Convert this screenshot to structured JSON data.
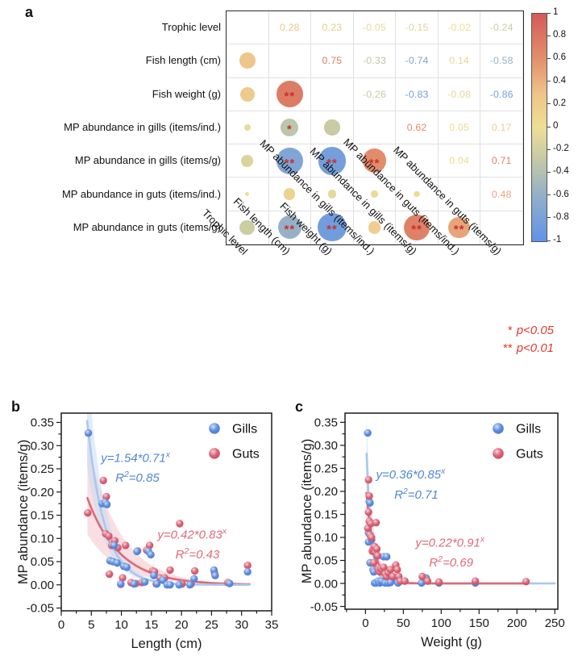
{
  "figure": {
    "panel_a_letter": "a",
    "panel_b_letter": "b",
    "panel_c_letter": "c"
  },
  "colors": {
    "blue_base": "#5a8bdf",
    "blue_hi": "#cfe0f8",
    "blue_edge": "#4d7cd0",
    "blue_line": "#a8c8ee",
    "blue_band": "#c8dcf4",
    "blue_text": "#4f86d8",
    "red_base": "#d95f72",
    "red_hi": "#f8d2da",
    "red_edge": "#c95066",
    "red_line": "#dc6a79",
    "red_band": "#f4c3cb",
    "red_text": "#e0697a",
    "star": "#c9302c",
    "note": "#e23b2e",
    "axis": "#1a1a1a"
  },
  "chart_data": [
    {
      "type": "correlation-matrix",
      "variables": [
        "Trophic level",
        "Fish length (cm)",
        "Fish weight (g)",
        "MP abundance in gills (items/ind.)",
        "MP abundance in gills (items/g)",
        "MP abundance in guts (items/ind.)",
        "MP abundance in guts (items/g)"
      ],
      "correlations": [
        {
          "row": 1,
          "col": 0,
          "r": 0.28,
          "sig": ""
        },
        {
          "row": 2,
          "col": 0,
          "r": 0.23,
          "sig": ""
        },
        {
          "row": 2,
          "col": 1,
          "r": 0.75,
          "sig": "**"
        },
        {
          "row": 3,
          "col": 0,
          "r": -0.05,
          "sig": ""
        },
        {
          "row": 3,
          "col": 1,
          "r": -0.33,
          "sig": "*"
        },
        {
          "row": 3,
          "col": 2,
          "r": -0.26,
          "sig": ""
        },
        {
          "row": 4,
          "col": 0,
          "r": -0.15,
          "sig": ""
        },
        {
          "row": 4,
          "col": 1,
          "r": -0.74,
          "sig": "**"
        },
        {
          "row": 4,
          "col": 2,
          "r": -0.83,
          "sig": "**"
        },
        {
          "row": 4,
          "col": 3,
          "r": 0.62,
          "sig": "**"
        },
        {
          "row": 5,
          "col": 0,
          "r": -0.02,
          "sig": ""
        },
        {
          "row": 5,
          "col": 1,
          "r": 0.14,
          "sig": ""
        },
        {
          "row": 5,
          "col": 2,
          "r": -0.08,
          "sig": ""
        },
        {
          "row": 5,
          "col": 3,
          "r": 0.05,
          "sig": ""
        },
        {
          "row": 5,
          "col": 4,
          "r": 0.04,
          "sig": ""
        },
        {
          "row": 6,
          "col": 0,
          "r": -0.24,
          "sig": ""
        },
        {
          "row": 6,
          "col": 1,
          "r": -0.58,
          "sig": "**"
        },
        {
          "row": 6,
          "col": 2,
          "r": -0.86,
          "sig": "**"
        },
        {
          "row": 6,
          "col": 3,
          "r": 0.17,
          "sig": ""
        },
        {
          "row": 6,
          "col": 4,
          "r": 0.71,
          "sig": "**"
        },
        {
          "row": 6,
          "col": 5,
          "r": 0.48,
          "sig": "**"
        }
      ],
      "colorbar_ticks": [
        "1",
        "0.8",
        "0.6",
        "0.4",
        "0.2",
        "0",
        "-0.2",
        "-0.4",
        "-0.6",
        "-0.8",
        "-1"
      ],
      "colorbar_range": [
        1,
        -1
      ],
      "significance_note": [
        {
          "stars": "*",
          "label": "p<0.05"
        },
        {
          "stars": "**",
          "label": "p<0.01"
        }
      ]
    },
    {
      "type": "scatter",
      "panel": "b",
      "xlabel": "Length (cm)",
      "ylabel": "MP abundance (items/g)",
      "xlim": [
        0,
        35
      ],
      "ylim": [
        -0.056,
        0.37
      ],
      "xticks": [
        0,
        5,
        10,
        15,
        20,
        25,
        30,
        35
      ],
      "xminor_step": 2.5,
      "yticks": [
        "-0.05",
        "0.00",
        "0.05",
        "0.10",
        "0.15",
        "0.20",
        "0.25",
        "0.30",
        "0.35"
      ],
      "yminor_step": 0.025,
      "legend": [
        {
          "label": "Gills",
          "color": "blue"
        },
        {
          "label": "Guts",
          "color": "red"
        }
      ],
      "series": [
        {
          "name": "Guts",
          "color": "red",
          "fit": {
            "a": 0.42,
            "b": 0.83,
            "x_start": 4.35,
            "x_end": 31.3,
            "band": [
              0.58,
              1.65
            ]
          },
          "points": [
            [
              4.4,
              0.155
            ],
            [
              7.0,
              0.225
            ],
            [
              7.4,
              0.11
            ],
            [
              7.5,
              0.19
            ],
            [
              7.9,
              0.105
            ],
            [
              8.0,
              0.023
            ],
            [
              8.4,
              0.085
            ],
            [
              8.9,
              0.095
            ],
            [
              9.4,
              0.08
            ],
            [
              9.9,
              0.001
            ],
            [
              10.2,
              0.015
            ],
            [
              10.7,
              0.085
            ],
            [
              11.6,
              0.005
            ],
            [
              12.4,
              0.003
            ],
            [
              12.7,
              0.073
            ],
            [
              13.4,
              0.005
            ],
            [
              14.2,
              0.075
            ],
            [
              14.7,
              0.085
            ],
            [
              15.2,
              0.03
            ],
            [
              15.5,
              0.028
            ],
            [
              15.8,
              0.002
            ],
            [
              16.4,
              0.015
            ],
            [
              17.2,
              0.015
            ],
            [
              18.1,
              0.032
            ],
            [
              19.7,
              0.132
            ],
            [
              20.1,
              0.002
            ],
            [
              21.6,
              0.002
            ],
            [
              22.2,
              0.03
            ],
            [
              25.5,
              0.025
            ],
            [
              27.7,
              0.005
            ],
            [
              31.0,
              0.042
            ]
          ]
        },
        {
          "name": "Gills",
          "color": "blue",
          "fit": {
            "a": 1.54,
            "b": 0.71,
            "x_start": 4.3,
            "x_end": 31.2,
            "band": [
              0.72,
              1.35
            ]
          },
          "points": [
            [
              4.5,
              0.327
            ],
            [
              6.8,
              0.175
            ],
            [
              7.3,
              0.178
            ],
            [
              7.6,
              0.173
            ],
            [
              8.1,
              0.052
            ],
            [
              8.6,
              0.05
            ],
            [
              8.8,
              0.085
            ],
            [
              9.3,
              0.047
            ],
            [
              9.9,
              0.002
            ],
            [
              10.4,
              0.04
            ],
            [
              10.9,
              0.038
            ],
            [
              12.1,
              0.002
            ],
            [
              12.6,
              0.072
            ],
            [
              13.9,
              0.006
            ],
            [
              14.5,
              0.072
            ],
            [
              14.9,
              0.065
            ],
            [
              15.4,
              0.02
            ],
            [
              15.9,
              0.002
            ],
            [
              16.9,
              0.01
            ],
            [
              17.6,
              0.0
            ],
            [
              18.1,
              0.0
            ],
            [
              19.6,
              0.0
            ],
            [
              21.4,
              0.0
            ],
            [
              22.1,
              0.013
            ],
            [
              25.4,
              0.032
            ],
            [
              25.6,
              0.02
            ],
            [
              28.0,
              0.003
            ],
            [
              31.0,
              0.028
            ]
          ]
        }
      ],
      "annotations": [
        {
          "segments": [
            {
              "t": "y=1.54*0.71"
            },
            {
              "t": "x",
              "sup": true
            }
          ],
          "x": 6.6,
          "y": 0.265,
          "color": "blue"
        },
        {
          "segments": [
            {
              "t": "R"
            },
            {
              "t": "2",
              "sup": true
            },
            {
              "t": "=0.85"
            }
          ],
          "x": 9.0,
          "y": 0.222,
          "color": "blue"
        },
        {
          "segments": [
            {
              "t": "y=0.42*0.83"
            },
            {
              "t": "x",
              "sup": true
            }
          ],
          "x": 16.0,
          "y": 0.1,
          "color": "red"
        },
        {
          "segments": [
            {
              "t": "R"
            },
            {
              "t": "2",
              "sup": true
            },
            {
              "t": "=0.43"
            }
          ],
          "x": 19.0,
          "y": 0.057,
          "color": "red"
        }
      ]
    },
    {
      "type": "scatter",
      "panel": "c",
      "xlabel": "Weight (g)",
      "ylabel": "MP abundance (items/g)",
      "xlim": [
        -27,
        254
      ],
      "ylim": [
        -0.056,
        0.37
      ],
      "xticks": [
        0,
        50,
        100,
        150,
        200,
        250
      ],
      "xminor_step": 25,
      "yticks": [
        "-0.05",
        "0.00",
        "0.05",
        "0.10",
        "0.15",
        "0.20",
        "0.25",
        "0.30",
        "0.35"
      ],
      "yminor_step": 0.025,
      "legend": [
        {
          "label": "Gills",
          "color": "blue"
        },
        {
          "label": "Guts",
          "color": "red"
        }
      ],
      "series": [
        {
          "name": "Gills",
          "color": "blue",
          "fit": {
            "a": 0.36,
            "b": 0.85,
            "x_start": 1.5,
            "x_end": 250,
            "band": [
              0.75,
              1.3
            ]
          },
          "points": [
            [
              3,
              0.327
            ],
            [
              4,
              0.09
            ],
            [
              4,
              0.11
            ],
            [
              5,
              0.178
            ],
            [
              6,
              0.175
            ],
            [
              6,
              0.045
            ],
            [
              8,
              0.095
            ],
            [
              10,
              0.03
            ],
            [
              11,
              0.025
            ],
            [
              12,
              0.001
            ],
            [
              14,
              0.001
            ],
            [
              15,
              0.06
            ],
            [
              17,
              0.005
            ],
            [
              19,
              0.001
            ],
            [
              21,
              0.005
            ],
            [
              24,
              0.058
            ],
            [
              26,
              0.001
            ],
            [
              28,
              0.058
            ],
            [
              30,
              0.001
            ],
            [
              33,
              0.002
            ],
            [
              40,
              0.01
            ],
            [
              43,
              0.001
            ],
            [
              74,
              0.001
            ],
            [
              80,
              0.012
            ],
            [
              97,
              0.001
            ],
            [
              145,
              0.001
            ]
          ]
        },
        {
          "name": "Guts",
          "color": "red",
          "fit": {
            "a": 0.22,
            "b": 0.91,
            "x_start": 1.2,
            "x_end": 213,
            "band": [
              0.6,
              1.5
            ]
          },
          "points": [
            [
              3,
              0.12
            ],
            [
              4,
              0.225
            ],
            [
              4,
              0.155
            ],
            [
              5,
              0.19
            ],
            [
              5,
              0.135
            ],
            [
              6,
              0.105
            ],
            [
              7,
              0.13
            ],
            [
              8,
              0.1
            ],
            [
              9,
              0.07
            ],
            [
              10,
              0.075
            ],
            [
              11,
              0.045
            ],
            [
              12,
              0.08
            ],
            [
              13,
              0.068
            ],
            [
              14,
              0.132
            ],
            [
              15,
              0.075
            ],
            [
              16,
              0.06
            ],
            [
              17,
              0.03
            ],
            [
              19,
              0.025
            ],
            [
              20,
              0.032
            ],
            [
              22,
              0.03
            ],
            [
              24,
              0.035
            ],
            [
              26,
              0.02
            ],
            [
              28,
              0.015
            ],
            [
              30,
              0.023
            ],
            [
              33,
              0.03
            ],
            [
              36,
              0.015
            ],
            [
              40,
              0.04
            ],
            [
              42,
              0.03
            ],
            [
              44,
              0.015
            ],
            [
              46,
              0.005
            ],
            [
              52,
              0.005
            ],
            [
              75,
              0.015
            ],
            [
              82,
              0.005
            ],
            [
              97,
              0.003
            ],
            [
              145,
              0.005
            ],
            [
              212,
              0.004
            ]
          ]
        }
      ],
      "annotations": [
        {
          "segments": [
            {
              "t": "y=0.36*0.85"
            },
            {
              "t": "x",
              "sup": true
            }
          ],
          "x": 14,
          "y": 0.228,
          "color": "blue"
        },
        {
          "segments": [
            {
              "t": "R"
            },
            {
              "t": "2",
              "sup": true
            },
            {
              "t": "=0.71"
            }
          ],
          "x": 38,
          "y": 0.184,
          "color": "blue"
        },
        {
          "segments": [
            {
              "t": "y=0.22*0.91"
            },
            {
              "t": "x",
              "sup": true
            }
          ],
          "x": 66,
          "y": 0.08,
          "color": "red"
        },
        {
          "segments": [
            {
              "t": "R"
            },
            {
              "t": "2",
              "sup": true
            },
            {
              "t": "=0.69"
            }
          ],
          "x": 84,
          "y": 0.037,
          "color": "red"
        }
      ]
    }
  ]
}
